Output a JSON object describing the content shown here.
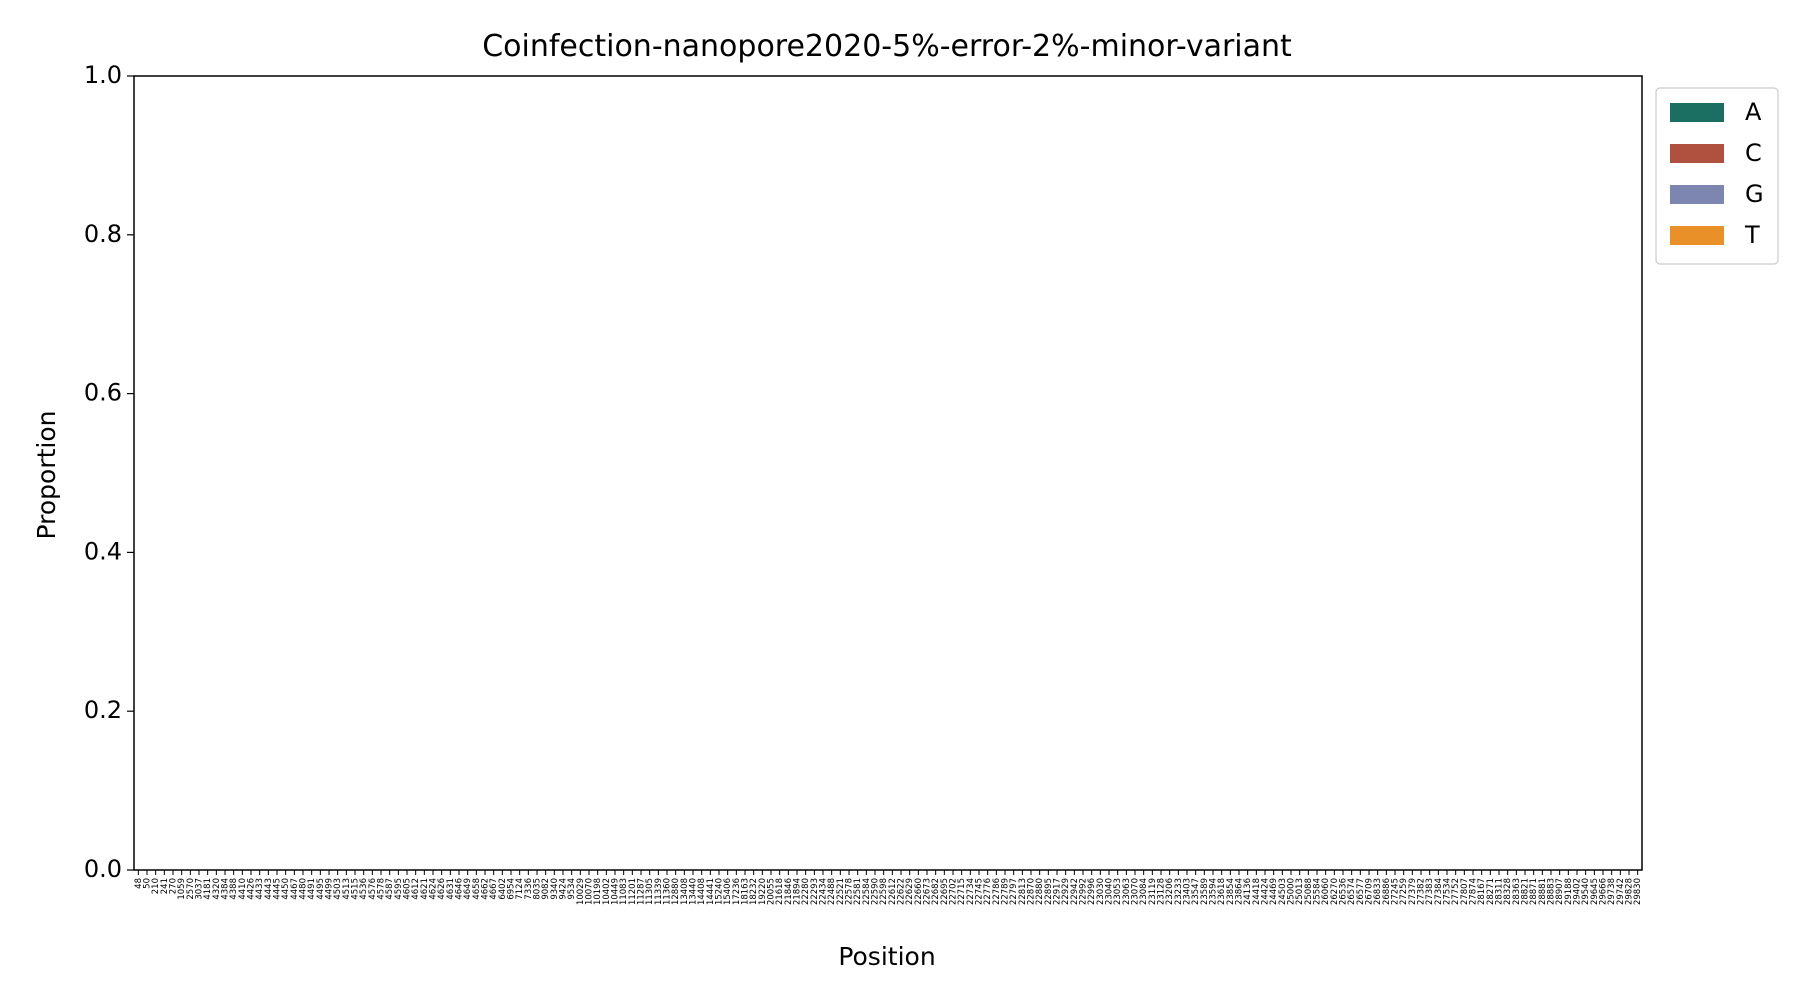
{
  "chart_data": {
    "type": "bar",
    "stacked": true,
    "title": "Coinfection-nanopore2020-5%-error-2%-minor-variant",
    "xlabel": "Position",
    "ylabel": "Proportion",
    "ylim": [
      0,
      1
    ],
    "yticks": [
      "0.0",
      "0.2",
      "0.4",
      "0.6",
      "0.8",
      "1.0"
    ],
    "grid": false,
    "legend_position": "upper-right-outside",
    "colors": {
      "A": "#1b6e62",
      "C": "#b0503e",
      "G": "#7d86b0",
      "T": "#ea9029"
    },
    "categories": [
      "48",
      "50",
      "210",
      "241",
      "270",
      "1059",
      "2570",
      "3037",
      "4181",
      "4320",
      "4384",
      "4388",
      "4410",
      "4426",
      "4433",
      "4443",
      "4445",
      "4450",
      "4467",
      "4480",
      "4491",
      "4495",
      "4499",
      "4503",
      "4513",
      "4515",
      "4536",
      "4576",
      "4578",
      "4587",
      "4595",
      "4605",
      "4612",
      "4621",
      "4624",
      "4626",
      "4631",
      "4646",
      "4649",
      "4658",
      "4662",
      "4667",
      "6402",
      "6954",
      "7124",
      "7336",
      "8035",
      "9082",
      "9340",
      "9424",
      "9534",
      "10029",
      "10070",
      "10198",
      "10402",
      "10449",
      "11083",
      "11201",
      "11287",
      "11305",
      "11339",
      "11360",
      "12880",
      "13408",
      "13440",
      "14408",
      "14441",
      "15240",
      "15406",
      "17236",
      "18163",
      "18232",
      "19220",
      "20055",
      "21618",
      "21846",
      "21894",
      "22280",
      "22293",
      "22434",
      "22488",
      "22521",
      "22578",
      "22581",
      "22584",
      "22590",
      "22598",
      "22612",
      "22622",
      "22629",
      "22660",
      "22673",
      "22682",
      "22695",
      "22702",
      "22715",
      "22734",
      "22745",
      "22776",
      "22786",
      "22789",
      "22797",
      "22813",
      "22870",
      "22880",
      "22895",
      "22917",
      "22929",
      "22942",
      "22992",
      "22996",
      "23030",
      "23040",
      "23053",
      "23063",
      "23070",
      "23084",
      "23119",
      "23128",
      "23206",
      "23233",
      "23403",
      "23547",
      "23589",
      "23594",
      "23618",
      "23854",
      "23864",
      "24136",
      "24418",
      "24424",
      "24469",
      "24503",
      "25000",
      "25013",
      "25088",
      "25584",
      "26060",
      "26270",
      "26536",
      "26574",
      "26577",
      "26709",
      "26833",
      "26886",
      "27245",
      "27259",
      "27379",
      "27382",
      "27383",
      "27384",
      "27534",
      "27752",
      "27807",
      "27874",
      "28167",
      "28271",
      "28311",
      "28328",
      "28363",
      "28821",
      "28871",
      "28881",
      "28883",
      "28907",
      "29188",
      "29402",
      "29540",
      "29645",
      "29666",
      "29738",
      "29742",
      "29828",
      "29830"
    ]
  }
}
